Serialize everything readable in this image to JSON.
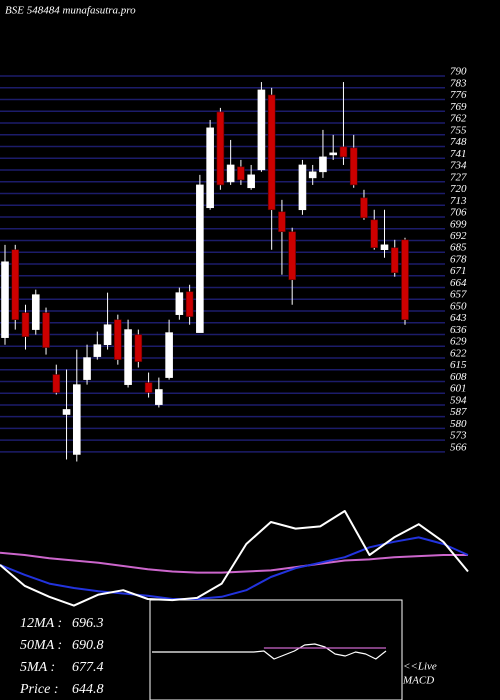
{
  "chart_data": [
    {
      "type": "candlestick",
      "title": "BSE 548484  munafasutra.pro",
      "open": [
        634.1,
        686.5,
        649.0,
        638.9,
        649.0,
        612.1,
        588.3,
        564.5,
        609.1,
        622.8,
        629.9,
        644.8,
        606.1,
        635.9,
        607.3,
        594.2,
        610.3,
        647.8,
        661.5,
        637.1,
        711.5,
        768.6,
        726.9,
        735.9,
        723.4,
        734.1,
        778.7,
        709.1,
        697.2,
        710.3,
        729.3,
        732.9,
        743.0,
        747.8,
        747.2,
        717.4,
        704.3,
        686.5,
        687.7,
        692.4
      ],
      "high": [
        689.4,
        689.4,
        653.7,
        662.7,
        652.0,
        618.0,
        615.1,
        627.0,
        629.9,
        637.7,
        660.9,
        647.8,
        644.8,
        638.9,
        613.3,
        610.3,
        644.8,
        663.9,
        665.6,
        731.1,
        763.8,
        771.0,
        751.9,
        740.0,
        737.0,
        786.4,
        782.9,
        716.2,
        699.6,
        740.0,
        737.0,
        757.9,
        754.9,
        786.4,
        754.9,
        722.2,
        710.3,
        710.3,
        692.4,
        693.6
      ],
      "low": [
        629.9,
        638.9,
        627.0,
        635.9,
        624.0,
        600.2,
        561.5,
        560.3,
        606.1,
        621.0,
        627.0,
        618.0,
        604.4,
        616.3,
        598.4,
        592.5,
        609.1,
        644.8,
        641.8,
        637.1,
        710.3,
        722.2,
        725.1,
        725.1,
        722.2,
        732.9,
        686.5,
        671.6,
        653.7,
        707.3,
        725.1,
        729.3,
        740.0,
        737.0,
        723.4,
        704.3,
        686.5,
        681.7,
        670.4,
        641.8
      ],
      "close": [
        679.3,
        644.8,
        634.7,
        659.7,
        628.2,
        601.4,
        591.3,
        606.1,
        622.2,
        629.9,
        641.8,
        621.0,
        638.9,
        619.8,
        601.4,
        603.2,
        637.1,
        660.9,
        646.6,
        725.1,
        759.1,
        725.1,
        737.0,
        728.1,
        731.1,
        781.7,
        710.3,
        697.2,
        668.6,
        737.0,
        732.9,
        741.8,
        744.2,
        741.8,
        725.1,
        705.5,
        687.7,
        689.4,
        672.8,
        644.8
      ],
      "up_color": "#ffffff",
      "down_color": "#cc0000",
      "ylim": [
        560,
        790
      ],
      "yticks": [
        790,
        783,
        776,
        769,
        762,
        755,
        748,
        741,
        734,
        727,
        720,
        713,
        706,
        699,
        692,
        685,
        678,
        671,
        664,
        657,
        650,
        643,
        636,
        629,
        622,
        615,
        608,
        601,
        594,
        587,
        580,
        573,
        566
      ],
      "grid": true,
      "grid_color": "#1c1c6a"
    },
    {
      "type": "line",
      "ylim": [
        0,
        100
      ],
      "series": [
        {
          "color": "#cc66cc",
          "values": [
            52,
            50,
            47,
            45,
            43,
            40,
            37,
            35,
            34,
            34,
            35,
            36,
            39,
            42,
            45,
            46,
            48,
            49,
            50,
            50
          ]
        },
        {
          "color": "#2233dd",
          "values": [
            41,
            32,
            24,
            20,
            17,
            15,
            13,
            10,
            10,
            12,
            18,
            30,
            38,
            43,
            48,
            57,
            62,
            66,
            60,
            50
          ]
        },
        {
          "color": "#ffffff",
          "values": [
            41,
            22,
            12,
            4,
            14,
            18,
            10,
            9,
            11,
            24,
            60,
            80,
            74,
            76,
            90,
            50,
            66,
            78,
            62,
            35
          ]
        }
      ]
    },
    {
      "type": "line",
      "ylim": [
        -10,
        10
      ],
      "series": [
        {
          "color": "#ffffff",
          "values": [
            -0.4,
            -0.4,
            -0.4,
            -0.4,
            -0.4,
            -0.4,
            -0.4,
            -0.4,
            -0.4,
            -0.4,
            -0.4,
            -0.2,
            -1.8,
            -1.0,
            -0.2,
            1.0,
            1.2,
            0.6,
            -0.8,
            -1.2,
            -0.4,
            -0.8,
            -1.8,
            -0.2
          ]
        },
        {
          "color": "#cc66cc",
          "values": [
            null,
            null,
            null,
            null,
            null,
            null,
            null,
            null,
            null,
            null,
            null,
            0.4,
            0.4,
            0.4,
            0.4,
            0.4,
            0.4,
            0.4,
            0.4,
            0.4,
            0.4,
            0.4,
            0.4,
            0.4
          ]
        }
      ]
    }
  ],
  "stats": [
    {
      "label": "12MA :",
      "value": 696.3
    },
    {
      "label": "50MA :",
      "value": 690.8
    },
    {
      "label": "5MA :",
      "value": 677.4
    },
    {
      "label": "Price  :",
      "value": 644.8
    }
  ],
  "macd_label": "<<Live",
  "macd_title": "MACD"
}
